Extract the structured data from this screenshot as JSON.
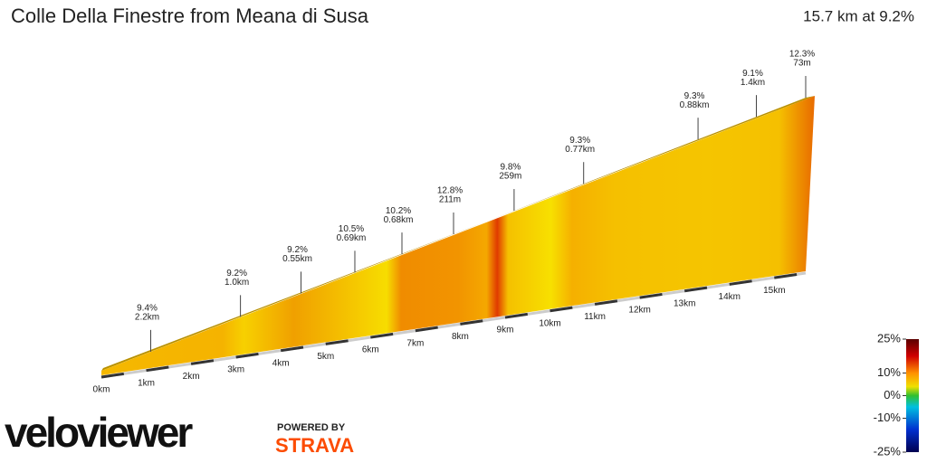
{
  "chart_data": {
    "type": "climb-profile",
    "title": "Colle Della Finestre from Meana di Susa",
    "subtitle": "15.7 km at 9.2%",
    "xlim": [
      0,
      15.7
    ],
    "xticks": [
      {
        "value": 0,
        "label": "0km"
      },
      {
        "value": 1,
        "label": "1km"
      },
      {
        "value": 2,
        "label": "2km"
      },
      {
        "value": 3,
        "label": "3km"
      },
      {
        "value": 4,
        "label": "4km"
      },
      {
        "value": 5,
        "label": "5km"
      },
      {
        "value": 6,
        "label": "6km"
      },
      {
        "value": 7,
        "label": "7km"
      },
      {
        "value": 8,
        "label": "8km"
      },
      {
        "value": 9,
        "label": "9km"
      },
      {
        "value": 10,
        "label": "10km"
      },
      {
        "value": 11,
        "label": "11km"
      },
      {
        "value": 12,
        "label": "12km"
      },
      {
        "value": 13,
        "label": "13km"
      },
      {
        "value": 14,
        "label": "14km"
      },
      {
        "value": 15,
        "label": "15km"
      }
    ],
    "x": [
      1.1,
      3.1,
      4.45,
      5.65,
      6.7,
      7.85,
      9.2,
      10.75,
      13.3,
      14.6,
      15.7
    ],
    "values": [
      9.4,
      9.2,
      9.2,
      10.5,
      10.2,
      12.8,
      9.8,
      9.3,
      9.3,
      9.1,
      12.3
    ],
    "value_labels": [
      "9.4%",
      "9.2%",
      "9.2%",
      "10.5%",
      "10.2%",
      "12.8%",
      "9.8%",
      "9.3%",
      "9.3%",
      "9.1%",
      "12.3%"
    ],
    "lengths": [
      "2.2km",
      "1.0km",
      "0.55km",
      "0.69km",
      "0.68km",
      "211m",
      "259m",
      "0.77km",
      "0.88km",
      "1.4km",
      "73m"
    ],
    "colorbar": {
      "lim": [
        -25,
        25
      ],
      "ticks": [
        {
          "value": 25,
          "label": "25%"
        },
        {
          "value": 10,
          "label": "10%"
        },
        {
          "value": 0,
          "label": "0%"
        },
        {
          "value": -10,
          "label": "-10%"
        },
        {
          "value": -25,
          "label": "-25%"
        }
      ]
    }
  },
  "branding": {
    "logo": "veloviewer",
    "powered_by": "POWERED BY",
    "strava": "STRAVA"
  }
}
